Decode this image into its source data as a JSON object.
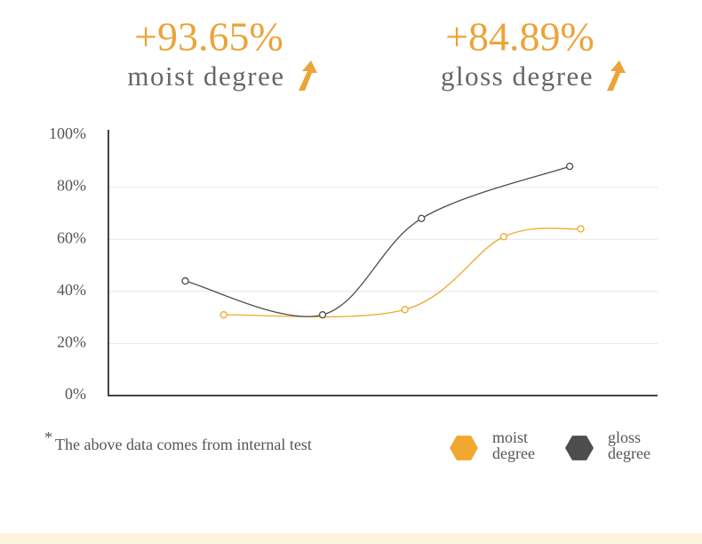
{
  "chart_data": {
    "type": "line",
    "headlines": [
      {
        "value": "+93.65%",
        "label": "moist degree"
      },
      {
        "value": "+84.89%",
        "label": "gloss degree"
      }
    ],
    "footnote_mark": "*",
    "footnote": "The above data comes from internal test",
    "xlim": [
      0,
      100
    ],
    "ylim": [
      0,
      100
    ],
    "yticks": [
      {
        "value": 0,
        "label": "0%"
      },
      {
        "value": 20,
        "label": "20%"
      },
      {
        "value": 40,
        "label": "40%"
      },
      {
        "value": 60,
        "label": "60%"
      },
      {
        "value": 80,
        "label": "80%"
      },
      {
        "value": 100,
        "label": "100%"
      }
    ],
    "grid": true,
    "series": [
      {
        "name": "moist degree",
        "color": "#f0a82e",
        "x": [
          21,
          54,
          72,
          86
        ],
        "values": [
          31,
          33,
          61,
          64
        ]
      },
      {
        "name": "gloss degree",
        "color": "#4d4d4d",
        "x": [
          14,
          39,
          57,
          84
        ],
        "values": [
          44,
          31,
          68,
          88
        ]
      }
    ]
  }
}
